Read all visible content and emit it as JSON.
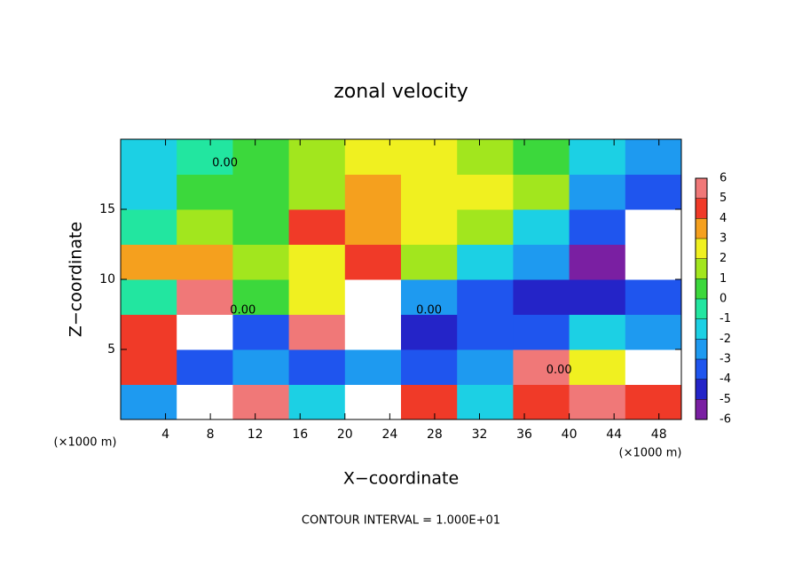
{
  "chart_data": {
    "type": "heatmap",
    "title": "zonal velocity",
    "x_label": "X−coordinate",
    "y_label": "Z−coordinate",
    "x_unit_label": "(×1000 m)",
    "y_unit_label": "(×1000 m)",
    "footnote": "CONTOUR INTERVAL = 1.000E+01",
    "xlim": [
      0,
      50
    ],
    "ylim": [
      0,
      20
    ],
    "xticks": [
      4,
      8,
      12,
      16,
      20,
      24,
      28,
      32,
      36,
      40,
      44,
      48
    ],
    "yticks": [
      5,
      10,
      15
    ],
    "x": [
      2.5,
      7.5,
      12.5,
      17.5,
      22.5,
      27.5,
      32.5,
      37.5,
      42.5,
      47.5
    ],
    "y": [
      1.25,
      3.75,
      6.25,
      8.75,
      11.25,
      13.75,
      16.25,
      18.75
    ],
    "values": [
      [
        -3,
        7,
        5,
        -2,
        7,
        4,
        -2,
        4,
        5,
        4
      ],
      [
        4,
        -4,
        -3,
        -4,
        -3,
        -4,
        -3,
        5,
        2,
        7
      ],
      [
        4,
        7,
        -4,
        5,
        7,
        -5,
        -4,
        -4,
        -2,
        -3
      ],
      [
        -1,
        5,
        0,
        2,
        7,
        -3,
        -4,
        -5,
        -5,
        -4
      ],
      [
        3,
        3,
        1,
        2,
        4,
        1,
        -2,
        -3,
        -6,
        7
      ],
      [
        -1,
        1,
        0,
        4,
        3,
        2,
        1,
        -2,
        -4,
        7
      ],
      [
        -2,
        0,
        0,
        1,
        3,
        2,
        2,
        1,
        -3,
        -4
      ],
      [
        -2,
        -1,
        0,
        1,
        2,
        2,
        1,
        0,
        -2,
        -3
      ]
    ],
    "colorbar": {
      "ticks": [
        6,
        5,
        4,
        3,
        2,
        1,
        0,
        -1,
        -2,
        -3,
        -4,
        -5,
        -6
      ],
      "colors": [
        "#7a1fa2",
        "#2424c8",
        "#1f55ee",
        "#1e9af0",
        "#1cd0e4",
        "#22e6a0",
        "#3cd83c",
        "#a2e61e",
        "#f0f020",
        "#f5a01e",
        "#f03a28",
        "#f07878"
      ],
      "above_color": "#ffffff",
      "below_color": "#ffffff"
    },
    "annotations": [
      {
        "text": "0.00",
        "x": 9.3,
        "y": 18.3
      },
      {
        "text": "0.00",
        "x": 10.9,
        "y": 7.8
      },
      {
        "text": "0.00",
        "x": 27.5,
        "y": 7.8
      },
      {
        "text": "0.00",
        "x": 39.1,
        "y": 3.5
      }
    ]
  }
}
